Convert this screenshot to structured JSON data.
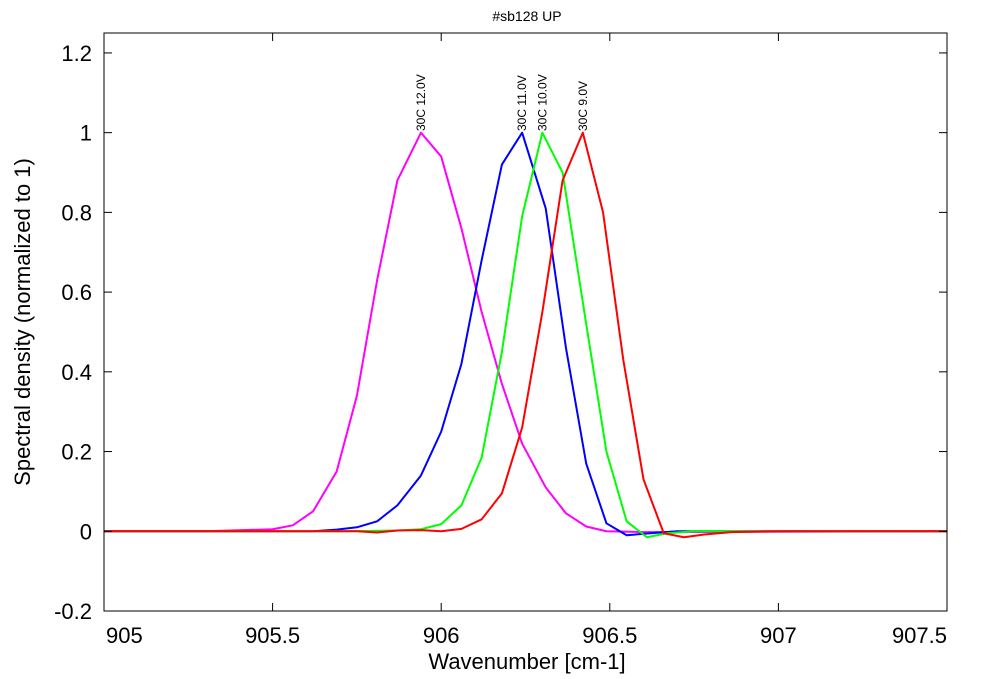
{
  "chart_data": {
    "type": "line",
    "title": "#sb128 UP",
    "xlabel": "Wavenumber [cm-1]",
    "ylabel": "Spectral density (normalized to 1)",
    "xlim": [
      905,
      907.5
    ],
    "ylim": [
      -0.2,
      1.25
    ],
    "x_ticks": [
      905,
      905.5,
      906,
      906.5,
      907,
      907.5
    ],
    "x_tick_labels": [
      "905",
      "905.5",
      "906",
      "906.5",
      "907",
      "907.5"
    ],
    "y_ticks": [
      -0.2,
      0,
      0.2,
      0.4,
      0.6,
      0.8,
      1,
      1.2
    ],
    "y_tick_labels": [
      "-0.2",
      "0",
      "0.2",
      "0.4",
      "0.6",
      "0.8",
      "1",
      "1.2"
    ],
    "grid": false,
    "legend": "none",
    "series": [
      {
        "name": "30C 12.0V",
        "color": "#ff00ff",
        "peak_x": 905.94,
        "points": [
          [
            905.0,
            0.0
          ],
          [
            905.3,
            0.0
          ],
          [
            905.5,
            0.005
          ],
          [
            905.56,
            0.015
          ],
          [
            905.62,
            0.05
          ],
          [
            905.69,
            0.15
          ],
          [
            905.75,
            0.34
          ],
          [
            905.81,
            0.63
          ],
          [
            905.87,
            0.88
          ],
          [
            905.94,
            1.0
          ],
          [
            906.0,
            0.94
          ],
          [
            906.06,
            0.76
          ],
          [
            906.12,
            0.55
          ],
          [
            906.18,
            0.37
          ],
          [
            906.24,
            0.22
          ],
          [
            906.31,
            0.11
          ],
          [
            906.37,
            0.045
          ],
          [
            906.43,
            0.012
          ],
          [
            906.49,
            0.0
          ],
          [
            906.6,
            -0.002
          ],
          [
            907.5,
            0.0
          ]
        ]
      },
      {
        "name": "30C 11.0V",
        "color": "#0000ff",
        "peak_x": 906.24,
        "points": [
          [
            905.0,
            0.0
          ],
          [
            905.5,
            0.0
          ],
          [
            905.62,
            0.0
          ],
          [
            905.69,
            0.004
          ],
          [
            905.75,
            0.01
          ],
          [
            905.81,
            0.025
          ],
          [
            905.87,
            0.065
          ],
          [
            905.94,
            0.14
          ],
          [
            906.0,
            0.25
          ],
          [
            906.06,
            0.42
          ],
          [
            906.12,
            0.68
          ],
          [
            906.18,
            0.92
          ],
          [
            906.24,
            1.0
          ],
          [
            906.31,
            0.81
          ],
          [
            906.37,
            0.46
          ],
          [
            906.43,
            0.17
          ],
          [
            906.49,
            0.02
          ],
          [
            906.55,
            -0.01
          ],
          [
            906.62,
            -0.005
          ],
          [
            906.7,
            0.0
          ],
          [
            907.5,
            0.0
          ]
        ]
      },
      {
        "name": "30C 10.0V",
        "color": "#00ff00",
        "peak_x": 906.3,
        "points": [
          [
            905.0,
            0.0
          ],
          [
            905.7,
            0.0
          ],
          [
            905.87,
            0.002
          ],
          [
            905.94,
            0.005
          ],
          [
            906.0,
            0.018
          ],
          [
            906.06,
            0.065
          ],
          [
            906.12,
            0.185
          ],
          [
            906.18,
            0.45
          ],
          [
            906.24,
            0.79
          ],
          [
            906.3,
            1.0
          ],
          [
            906.36,
            0.9
          ],
          [
            906.43,
            0.52
          ],
          [
            906.49,
            0.2
          ],
          [
            906.55,
            0.025
          ],
          [
            906.61,
            -0.015
          ],
          [
            906.67,
            -0.005
          ],
          [
            906.75,
            0.0
          ],
          [
            907.5,
            0.0
          ]
        ]
      },
      {
        "name": "30C 9.0V",
        "color": "#ff0000",
        "peak_x": 906.42,
        "points": [
          [
            905.0,
            0.0
          ],
          [
            905.75,
            0.0
          ],
          [
            905.81,
            -0.003
          ],
          [
            905.87,
            0.002
          ],
          [
            905.94,
            0.003
          ],
          [
            906.0,
            0.0
          ],
          [
            906.06,
            0.006
          ],
          [
            906.12,
            0.03
          ],
          [
            906.18,
            0.095
          ],
          [
            906.24,
            0.26
          ],
          [
            906.3,
            0.55
          ],
          [
            906.36,
            0.88
          ],
          [
            906.42,
            1.0
          ],
          [
            906.48,
            0.8
          ],
          [
            906.54,
            0.43
          ],
          [
            906.6,
            0.13
          ],
          [
            906.66,
            -0.005
          ],
          [
            906.72,
            -0.015
          ],
          [
            906.78,
            -0.008
          ],
          [
            906.86,
            -0.002
          ],
          [
            907.0,
            0.0
          ],
          [
            907.5,
            0.0
          ]
        ]
      }
    ]
  }
}
